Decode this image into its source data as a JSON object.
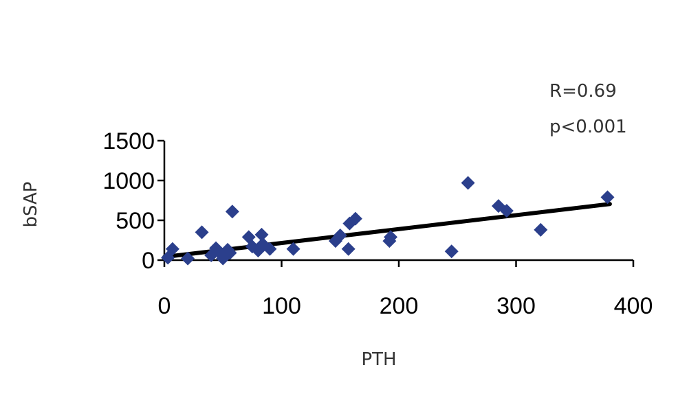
{
  "chart_data": {
    "type": "scatter",
    "title": "",
    "xlabel": "PTH",
    "ylabel": "bSAP",
    "xlim": [
      0,
      400
    ],
    "ylim": [
      0,
      1500
    ],
    "x_ticks": [
      0,
      100,
      200,
      300,
      400
    ],
    "y_ticks": [
      0,
      500,
      1000,
      1500
    ],
    "grid": false,
    "marker": "diamond",
    "marker_color": "#2B3F8C",
    "line_color": "#000000",
    "annotations": [
      "R=0.69",
      "p<0.001"
    ],
    "series": [
      {
        "x": [
          3,
          7,
          20,
          32,
          40,
          44,
          48,
          50,
          54,
          56,
          58,
          72,
          75,
          80,
          83,
          84,
          90,
          110,
          146,
          150,
          157,
          158,
          163,
          192,
          193,
          245,
          259,
          285,
          292,
          321,
          378
        ],
        "y": [
          30,
          140,
          20,
          350,
          60,
          150,
          80,
          20,
          130,
          90,
          610,
          290,
          170,
          120,
          320,
          200,
          140,
          140,
          240,
          310,
          140,
          460,
          520,
          240,
          290,
          110,
          970,
          680,
          620,
          380,
          790
        ]
      }
    ],
    "trendline": {
      "x": [
        0,
        380
      ],
      "y": [
        40,
        705
      ]
    }
  }
}
